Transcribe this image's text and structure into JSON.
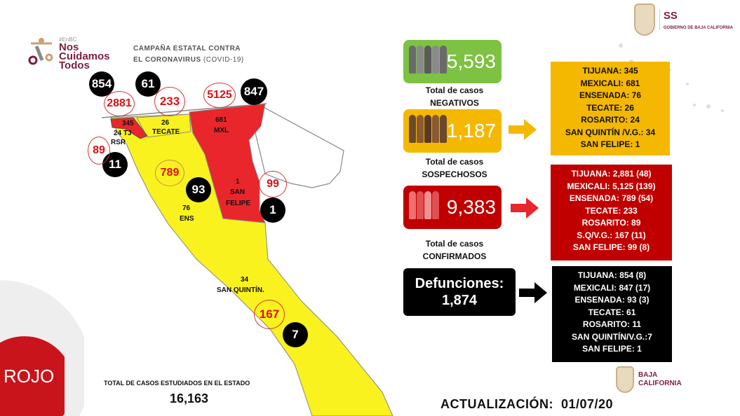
{
  "header": {
    "hashtag": "#EnBC",
    "logo_lines": [
      "Nos",
      "Cuidamos",
      "Todos"
    ],
    "campaign_line1": "CAMPAÑA ESTATAL CONTRA",
    "campaign_line2": "EL CORONAVIRUS",
    "campaign_suffix": "(COVID-19)",
    "gov_abbr": "SS",
    "gov_name": "GOBIERNO DE BAJA CALIFORNIA"
  },
  "map": {
    "deaths": {
      "tijuana": "854",
      "tecate": "61",
      "mexicali": "847",
      "rosarito": "11",
      "ensenada": "93",
      "san_felipe": "1",
      "san_quintin": "7"
    },
    "confirmed": {
      "tijuana": "2881",
      "tecate": "233",
      "mexicali": "5125",
      "rosarito": "89",
      "ensenada": "789",
      "san_felipe": "99",
      "san_quintin": "167"
    },
    "suspect_labels": {
      "tj_num": "345",
      "tj": "24 TJ",
      "rsr": "RSR",
      "tecate_num": "26",
      "tecate": "TECATE",
      "mxl_num": "681",
      "mxl": "MXL",
      "sf_num": "1",
      "sf1": "SAN",
      "sf2": "FELIPE",
      "ens_num": "76",
      "ens": "ENS",
      "sq_num": "34",
      "sq": "SAN QUINTÍN."
    }
  },
  "semaforo": "ROJO",
  "total_studied": {
    "label": "TOTAL DE CASOS ESTUDIADOS EN EL ESTADO",
    "value": "16,163"
  },
  "negatives": {
    "value": "5,593",
    "line1": "Total de casos",
    "line2": "NEGATIVOS",
    "color": "#7dc242"
  },
  "suspects": {
    "value": "1,187",
    "line1": "Total de casos",
    "line2": "SOSPECHOSOS",
    "color": "#f5b800",
    "breakdown": [
      "TIJUANA: 345",
      "MEXICALI: 681",
      "ENSENADA: 76",
      "TECATE: 26",
      "ROSARITO: 24",
      "SAN QUINTÍN /V.G.: 34",
      "SAN FELIPE: 1"
    ]
  },
  "confirmed": {
    "value": "9,383",
    "line1": "Total de casos",
    "line2": "CONFIRMADOS",
    "color": "#c00000",
    "breakdown": [
      "TIJUANA: 2,881 (48)",
      "MEXICALI: 5,125 (139)",
      "ENSENADA: 789 (54)",
      "TECATE: 233",
      "ROSARITO: 89",
      "S.Q/V.G.: 167 (11)",
      "SAN FELIPE: 99 (8)"
    ]
  },
  "deaths": {
    "label": "Defunciones:",
    "value": "1,874",
    "breakdown": [
      "TIJUANA: 854 (8)",
      "MEXICALI: 847 (17)",
      "ENSENADA: 93 (3)",
      "TECATE: 61",
      "ROSARITO: 11",
      "SAN QUINTÍN/V.G.:7",
      "SAN FELIPE: 1"
    ]
  },
  "footer": {
    "update_label": "ACTUALIZACIÓN:",
    "update_date": "01/07/20",
    "bc_logo_line1": "BAJA",
    "bc_logo_line2": "CALIFORNIA"
  }
}
